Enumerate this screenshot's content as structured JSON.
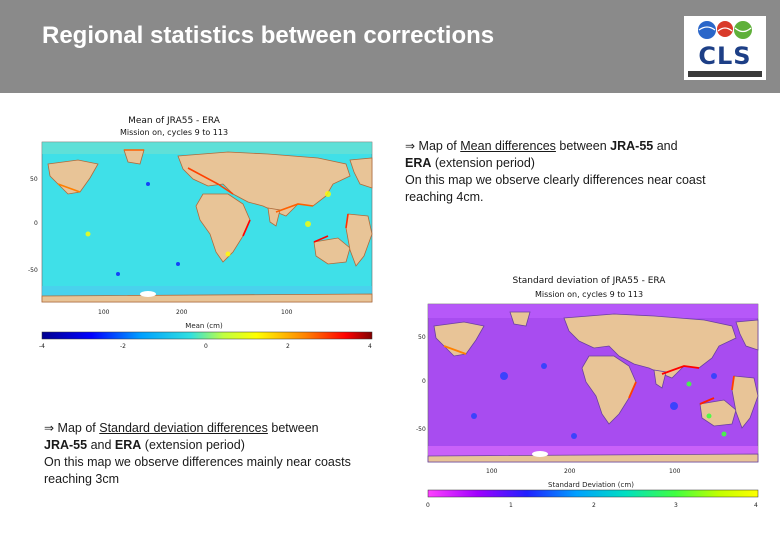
{
  "slide": {
    "title": "Regional statistics between corrections",
    "background": "#ffffff",
    "header_color": "#8a8a8a"
  },
  "logo": {
    "text": "CLS",
    "icon": "cls-logo-three-globes",
    "colors": [
      "#2a66c9",
      "#d93a2a",
      "#5fb03a"
    ]
  },
  "map_mean": {
    "title": "Mean of JRA55 - ERA",
    "subtitle": "Mission on, cycles 9 to 113",
    "lat_ticks": [
      "50",
      "0",
      "-50"
    ],
    "lon_ticks": [
      "100",
      "200",
      "100"
    ],
    "colorbar_label": "Mean (cm)",
    "colorbar_ticks": [
      "-4",
      "-2",
      "0",
      "2",
      "4"
    ],
    "colorbar_colors": [
      "#00008f",
      "#0000ff",
      "#00a0ff",
      "#30e0e0",
      "#c0ff40",
      "#ffff00",
      "#ff8000",
      "#ff0000",
      "#800000"
    ]
  },
  "map_std": {
    "title": "Standard deviation of JRA55 - ERA",
    "subtitle": "Mission on, cycles 9 to 113",
    "lat_ticks": [
      "50",
      "0",
      "-50"
    ],
    "lon_ticks": [
      "100",
      "200",
      "100"
    ],
    "colorbar_label": "Standard Deviation (cm)",
    "colorbar_ticks": [
      "0",
      "1",
      "2",
      "3",
      "4"
    ],
    "colorbar_colors": [
      "#ff40ff",
      "#a000ff",
      "#2020ff",
      "#00a0ff",
      "#00e0c0",
      "#40ff40",
      "#c0ff00",
      "#ffff00"
    ]
  },
  "note_mean": {
    "arrow": "⇒",
    "pre": "Map of",
    "link": "Mean differences",
    "mid": "between",
    "bold1": "JRA-55",
    "and": "and",
    "bold2": "ERA",
    "post": "(extension period)",
    "line2": "On this map we observe clearly differences near coast reaching 4cm."
  },
  "note_std": {
    "arrow": "⇒",
    "pre": "Map of",
    "link": "Standard deviation differences",
    "mid": "between",
    "bold1": "JRA-55",
    "and": "and",
    "bold2": "ERA",
    "post": "(extension period)",
    "line2": "On this map we observe differences mainly near coasts reaching 3cm"
  }
}
